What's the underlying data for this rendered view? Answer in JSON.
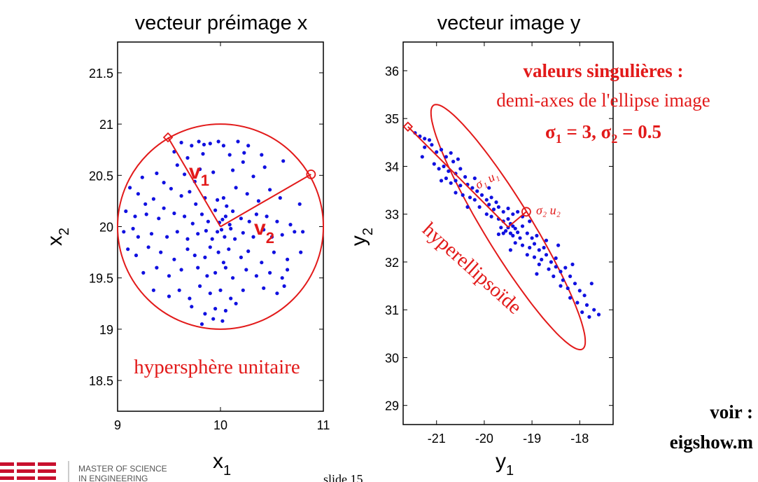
{
  "chart_data": [
    {
      "type": "scatter",
      "title": "vecteur préimage x",
      "xlabel": "x",
      "xlabel_sub": "1",
      "ylabel": "x",
      "ylabel_sub": "2",
      "xlim": [
        9,
        11
      ],
      "ylim": [
        18.2,
        21.8
      ],
      "xticks": [
        9,
        10,
        11
      ],
      "yticks": [
        18.5,
        19,
        19.5,
        20,
        20.5,
        21,
        21.5
      ],
      "circle": {
        "center": [
          10,
          20
        ],
        "radius": 1
      },
      "vectors": [
        {
          "label": "v",
          "sub": "1",
          "start": [
            10,
            20
          ],
          "end": [
            9.49,
            20.87
          ],
          "marker": "diamond"
        },
        {
          "label": "v",
          "sub": "2",
          "start": [
            10,
            20
          ],
          "end": [
            10.88,
            20.51
          ],
          "marker": "circle"
        }
      ],
      "annotation": "hypersphère unitaire",
      "point_color": "#1010e0",
      "line_color": "#e21a1a",
      "points": [
        [
          9.62,
          20.82
        ],
        [
          9.72,
          20.79
        ],
        [
          9.79,
          20.83
        ],
        [
          9.84,
          20.8
        ],
        [
          9.9,
          20.81
        ],
        [
          9.98,
          20.83
        ],
        [
          10.03,
          20.79
        ],
        [
          10.17,
          20.83
        ],
        [
          10.27,
          20.79
        ],
        [
          9.55,
          20.73
        ],
        [
          9.68,
          20.67
        ],
        [
          9.83,
          20.71
        ],
        [
          10.09,
          20.7
        ],
        [
          10.23,
          20.72
        ],
        [
          10.4,
          20.7
        ],
        [
          9.24,
          20.48
        ],
        [
          9.38,
          20.52
        ],
        [
          9.45,
          20.43
        ],
        [
          9.58,
          20.6
        ],
        [
          9.65,
          20.51
        ],
        [
          9.75,
          20.44
        ],
        [
          9.8,
          20.56
        ],
        [
          9.93,
          20.53
        ],
        [
          10.12,
          20.55
        ],
        [
          10.22,
          20.63
        ],
        [
          10.32,
          20.49
        ],
        [
          10.43,
          20.58
        ],
        [
          10.61,
          20.64
        ],
        [
          9.12,
          20.38
        ],
        [
          9.2,
          20.32
        ],
        [
          9.27,
          20.22
        ],
        [
          9.35,
          20.27
        ],
        [
          9.52,
          20.37
        ],
        [
          9.62,
          20.3
        ],
        [
          9.7,
          20.34
        ],
        [
          9.76,
          20.22
        ],
        [
          9.85,
          20.28
        ],
        [
          9.97,
          20.26
        ],
        [
          10.03,
          20.28
        ],
        [
          10.06,
          20.2
        ],
        [
          10.15,
          20.38
        ],
        [
          10.26,
          20.32
        ],
        [
          10.37,
          20.25
        ],
        [
          10.48,
          20.36
        ],
        [
          10.58,
          20.28
        ],
        [
          10.77,
          20.22
        ],
        [
          9.08,
          20.15
        ],
        [
          9.17,
          20.1
        ],
        [
          9.28,
          20.12
        ],
        [
          9.4,
          20.08
        ],
        [
          9.45,
          20.18
        ],
        [
          9.55,
          20.13
        ],
        [
          9.65,
          20.1
        ],
        [
          9.73,
          20.03
        ],
        [
          9.82,
          20.12
        ],
        [
          9.88,
          20.05
        ],
        [
          9.95,
          20.16
        ],
        [
          9.99,
          20.04
        ],
        [
          10.02,
          20.07
        ],
        [
          10.05,
          20.1
        ],
        [
          10.09,
          20.02
        ],
        [
          10.12,
          20.15
        ],
        [
          10.2,
          20.08
        ],
        [
          10.28,
          20.05
        ],
        [
          10.35,
          20.12
        ],
        [
          10.45,
          20.1
        ],
        [
          10.55,
          20.05
        ],
        [
          10.68,
          20.02
        ],
        [
          10.8,
          19.95
        ],
        [
          9.06,
          19.95
        ],
        [
          9.15,
          19.98
        ],
        [
          9.2,
          19.9
        ],
        [
          9.33,
          19.93
        ],
        [
          9.48,
          19.9
        ],
        [
          9.58,
          19.95
        ],
        [
          9.68,
          19.88
        ],
        [
          9.78,
          19.93
        ],
        [
          9.86,
          19.96
        ],
        [
          9.92,
          19.88
        ],
        [
          9.97,
          19.95
        ],
        [
          10.01,
          19.97
        ],
        [
          10.04,
          19.9
        ],
        [
          10.1,
          19.98
        ],
        [
          10.14,
          19.88
        ],
        [
          10.22,
          19.94
        ],
        [
          10.32,
          19.9
        ],
        [
          10.42,
          19.97
        ],
        [
          10.5,
          19.9
        ],
        [
          10.6,
          19.92
        ],
        [
          10.72,
          19.95
        ],
        [
          9.1,
          19.78
        ],
        [
          9.18,
          19.72
        ],
        [
          9.3,
          19.8
        ],
        [
          9.42,
          19.75
        ],
        [
          9.55,
          19.68
        ],
        [
          9.68,
          19.78
        ],
        [
          9.75,
          19.72
        ],
        [
          9.85,
          19.7
        ],
        [
          9.9,
          19.8
        ],
        [
          9.98,
          19.75
        ],
        [
          10.03,
          19.65
        ],
        [
          10.08,
          19.78
        ],
        [
          10.2,
          19.7
        ],
        [
          10.27,
          19.76
        ],
        [
          10.4,
          19.65
        ],
        [
          10.52,
          19.75
        ],
        [
          10.65,
          19.68
        ],
        [
          10.78,
          19.75
        ],
        [
          9.25,
          19.55
        ],
        [
          9.38,
          19.6
        ],
        [
          9.5,
          19.52
        ],
        [
          9.62,
          19.58
        ],
        [
          9.78,
          19.6
        ],
        [
          9.87,
          19.52
        ],
        [
          9.95,
          19.55
        ],
        [
          10.05,
          19.6
        ],
        [
          10.12,
          19.5
        ],
        [
          10.25,
          19.58
        ],
        [
          10.35,
          19.52
        ],
        [
          10.48,
          19.55
        ],
        [
          10.6,
          19.5
        ],
        [
          10.65,
          19.58
        ],
        [
          9.35,
          19.38
        ],
        [
          9.5,
          19.32
        ],
        [
          9.6,
          19.38
        ],
        [
          9.7,
          19.3
        ],
        [
          9.8,
          19.42
        ],
        [
          9.9,
          19.35
        ],
        [
          10.0,
          19.38
        ],
        [
          10.1,
          19.3
        ],
        [
          10.22,
          19.38
        ],
        [
          10.42,
          19.4
        ],
        [
          10.55,
          19.35
        ],
        [
          10.62,
          19.42
        ],
        [
          9.72,
          19.22
        ],
        [
          9.85,
          19.15
        ],
        [
          9.95,
          19.2
        ],
        [
          10.05,
          19.18
        ],
        [
          10.15,
          19.25
        ],
        [
          9.82,
          19.05
        ],
        [
          9.93,
          19.1
        ],
        [
          10.02,
          19.08
        ]
      ]
    },
    {
      "type": "scatter",
      "title": "vecteur image y",
      "xlabel": "y",
      "xlabel_sub": "1",
      "ylabel": "y",
      "ylabel_sub": "2",
      "xlim": [
        -21.7,
        -17.3
      ],
      "ylim": [
        28.6,
        36.6
      ],
      "xticks": [
        -21,
        -20,
        -19,
        -18
      ],
      "yticks": [
        29,
        30,
        31,
        32,
        33,
        34,
        35,
        36
      ],
      "ellipse": {
        "center": [
          -19.5,
          32.73
        ],
        "semi_major": 3,
        "semi_minor": 0.5,
        "major_dir": [
          0.52,
          -0.85
        ],
        "minor_dir": [
          0.85,
          0.52
        ]
      },
      "vectors": [
        {
          "label": "σ₁ u₁",
          "start": [
            -19.5,
            32.73
          ],
          "end": [
            -21.6,
            34.83
          ],
          "marker": "diamond"
        },
        {
          "label": "σ₂ u₂",
          "start": [
            -19.5,
            32.73
          ],
          "end": [
            -19.12,
            33.05
          ],
          "marker": "circle"
        }
      ],
      "annotation": "hyperellipsoïde",
      "point_color": "#1010e0",
      "line_color": "#e21a1a",
      "points": [
        [
          -21.45,
          34.7
        ],
        [
          -21.35,
          34.63
        ],
        [
          -21.25,
          34.58
        ],
        [
          -21.15,
          34.55
        ],
        [
          -21.1,
          34.45
        ],
        [
          -21.25,
          34.4
        ],
        [
          -21.0,
          34.3
        ],
        [
          -20.9,
          34.35
        ],
        [
          -20.8,
          34.2
        ],
        [
          -20.7,
          34.28
        ],
        [
          -20.65,
          34.1
        ],
        [
          -21.05,
          34.05
        ],
        [
          -20.95,
          33.95
        ],
        [
          -20.85,
          34.0
        ],
        [
          -20.75,
          33.9
        ],
        [
          -20.6,
          33.85
        ],
        [
          -20.5,
          33.95
        ],
        [
          -20.4,
          33.78
        ],
        [
          -20.9,
          33.7
        ],
        [
          -20.8,
          33.75
        ],
        [
          -20.7,
          33.65
        ],
        [
          -20.6,
          33.7
        ],
        [
          -20.5,
          33.6
        ],
        [
          -20.35,
          33.62
        ],
        [
          -20.25,
          33.55
        ],
        [
          -20.15,
          33.48
        ],
        [
          -20.6,
          33.45
        ],
        [
          -20.45,
          33.4
        ],
        [
          -20.3,
          33.35
        ],
        [
          -20.2,
          33.3
        ],
        [
          -20.05,
          33.4
        ],
        [
          -19.95,
          33.3
        ],
        [
          -19.85,
          33.35
        ],
        [
          -19.75,
          33.25
        ],
        [
          -19.9,
          33.2
        ],
        [
          -20.1,
          33.15
        ],
        [
          -19.8,
          33.1
        ],
        [
          -19.7,
          33.15
        ],
        [
          -19.6,
          33.05
        ],
        [
          -19.5,
          33.12
        ],
        [
          -19.4,
          33.0
        ],
        [
          -19.3,
          33.05
        ],
        [
          -19.95,
          33.0
        ],
        [
          -19.85,
          32.95
        ],
        [
          -19.7,
          32.9
        ],
        [
          -19.6,
          32.85
        ],
        [
          -19.5,
          32.9
        ],
        [
          -19.45,
          32.8
        ],
        [
          -19.4,
          32.75
        ],
        [
          -19.35,
          32.7
        ],
        [
          -19.5,
          32.72
        ],
        [
          -19.55,
          32.65
        ],
        [
          -19.6,
          32.6
        ],
        [
          -19.45,
          32.6
        ],
        [
          -19.4,
          32.55
        ],
        [
          -19.3,
          32.62
        ],
        [
          -19.25,
          32.5
        ],
        [
          -19.65,
          32.72
        ],
        [
          -19.7,
          32.58
        ],
        [
          -19.2,
          32.75
        ],
        [
          -19.1,
          32.6
        ],
        [
          -19.0,
          32.5
        ],
        [
          -18.9,
          32.55
        ],
        [
          -19.35,
          32.4
        ],
        [
          -19.2,
          32.35
        ],
        [
          -19.05,
          32.3
        ],
        [
          -18.95,
          32.38
        ],
        [
          -18.85,
          32.25
        ],
        [
          -18.75,
          32.3
        ],
        [
          -19.1,
          32.15
        ],
        [
          -18.95,
          32.1
        ],
        [
          -18.8,
          32.05
        ],
        [
          -18.7,
          32.15
        ],
        [
          -18.6,
          32.0
        ],
        [
          -18.5,
          32.08
        ],
        [
          -18.85,
          31.95
        ],
        [
          -18.65,
          31.85
        ],
        [
          -18.5,
          31.9
        ],
        [
          -18.4,
          31.8
        ],
        [
          -18.3,
          31.88
        ],
        [
          -18.55,
          31.7
        ],
        [
          -18.35,
          31.62
        ],
        [
          -18.2,
          31.7
        ],
        [
          -18.1,
          31.55
        ],
        [
          -18.4,
          31.5
        ],
        [
          -18.25,
          31.45
        ],
        [
          -18.0,
          31.4
        ],
        [
          -17.9,
          31.3
        ],
        [
          -18.2,
          31.25
        ],
        [
          -18.05,
          31.15
        ],
        [
          -17.85,
          31.1
        ],
        [
          -17.7,
          31.0
        ],
        [
          -17.95,
          30.95
        ],
        [
          -17.8,
          30.85
        ],
        [
          -17.6,
          30.9
        ],
        [
          -21.3,
          34.2
        ],
        [
          -20.55,
          34.15
        ],
        [
          -20.2,
          33.75
        ],
        [
          -19.9,
          33.55
        ],
        [
          -20.35,
          33.15
        ],
        [
          -19.2,
          32.95
        ],
        [
          -19.05,
          32.85
        ],
        [
          -18.7,
          32.45
        ],
        [
          -19.45,
          32.25
        ],
        [
          -18.45,
          32.35
        ],
        [
          -18.9,
          31.75
        ],
        [
          -18.15,
          31.95
        ],
        [
          -17.75,
          31.55
        ]
      ]
    }
  ],
  "annotations": {
    "heading": "valeurs singulières :",
    "subheading": "demi-axes de l'ellipse image",
    "sigma_values": "σ",
    "sigma1_sub": "1",
    "sigma_mid": " = 3, σ",
    "sigma2_sub": "2",
    "sigma_end": " = 0.5",
    "voir": "voir :",
    "script": "eigshow.m"
  },
  "footer": {
    "logo_line1": "MASTER OF SCIENCE",
    "logo_line2": "IN ENGINEERING",
    "slide": "slide 15"
  }
}
